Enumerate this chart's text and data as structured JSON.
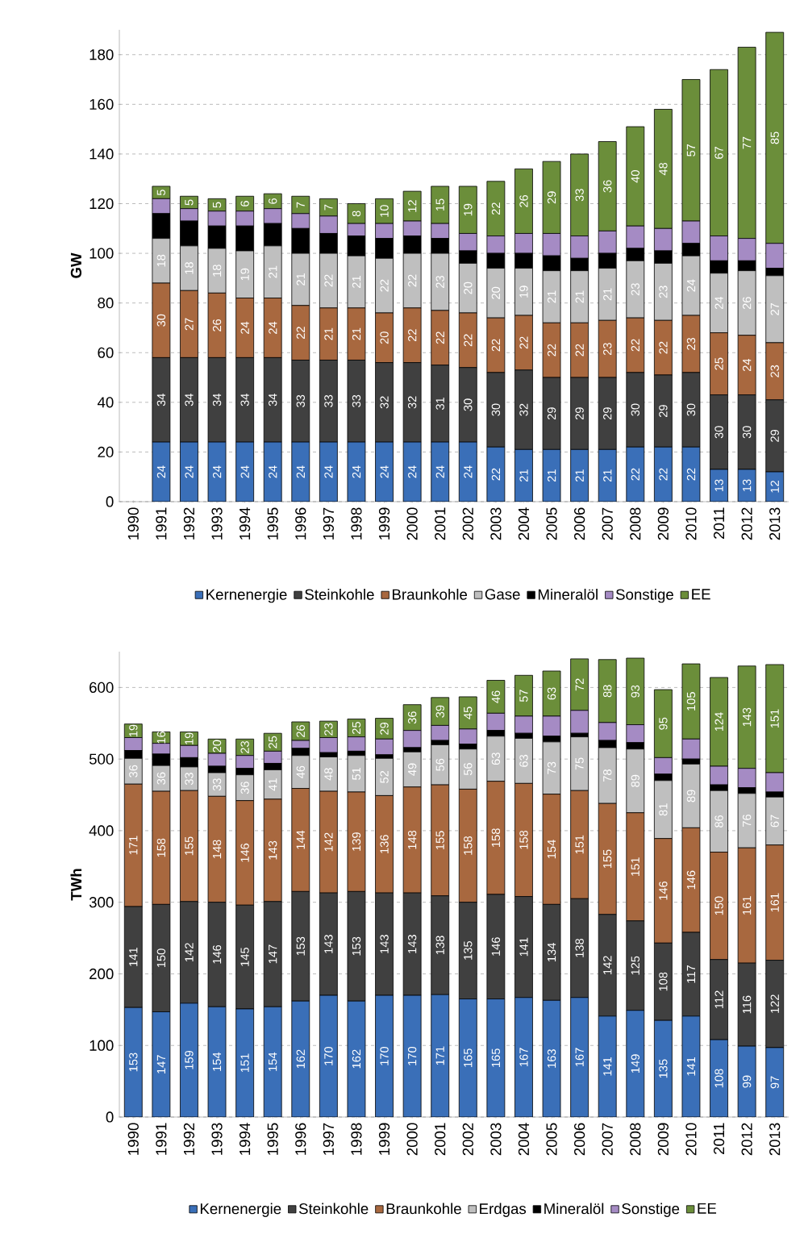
{
  "chart_data": [
    {
      "type": "bar",
      "stacked": true,
      "ylabel": "GW",
      "grid": "y",
      "legend": "bottom",
      "categories": [
        "1990",
        "1991",
        "1992",
        "1993",
        "1994",
        "1995",
        "1996",
        "1997",
        "1998",
        "1999",
        "2000",
        "2001",
        "2002",
        "2003",
        "2004",
        "2005",
        "2006",
        "2007",
        "2008",
        "2009",
        "2010",
        "2011",
        "2012",
        "2013"
      ],
      "ylim": [
        0,
        190
      ],
      "yticks": [
        0,
        20,
        40,
        60,
        80,
        100,
        120,
        140,
        160,
        180
      ],
      "series": [
        {
          "name": "Kernenergie",
          "color": "#3a6fb8",
          "values": [
            null,
            24,
            24,
            24,
            24,
            24,
            24,
            24,
            24,
            24,
            24,
            24,
            24,
            22,
            21,
            21,
            21,
            21,
            22,
            22,
            22,
            13,
            13,
            12
          ],
          "value_labels": [
            null,
            "24",
            "24",
            "24",
            "24",
            "24",
            "24",
            "24",
            "24",
            "24",
            "24",
            "24",
            "24",
            "22",
            "21",
            "21",
            "21",
            "21",
            "22",
            "22",
            "22",
            "13",
            "13",
            "12"
          ]
        },
        {
          "name": "Steinkohle",
          "color": "#404040",
          "values": [
            null,
            34,
            34,
            34,
            34,
            34,
            33,
            33,
            33,
            32,
            32,
            31,
            30,
            30,
            32,
            29,
            29,
            29,
            30,
            29,
            30,
            30,
            30,
            29
          ],
          "value_labels": [
            null,
            "34",
            "34",
            "34",
            "34",
            "34",
            "33",
            "33",
            "33",
            "32",
            "32",
            "31",
            "30",
            "30",
            "32",
            "29",
            "29",
            "29",
            "30",
            "29",
            "30",
            "30",
            "30",
            "29"
          ]
        },
        {
          "name": "Braunkohle",
          "color": "#a8683f",
          "values": [
            null,
            30,
            27,
            26,
            24,
            24,
            22,
            21,
            21,
            20,
            22,
            22,
            22,
            22,
            22,
            22,
            22,
            23,
            22,
            22,
            23,
            25,
            24,
            23
          ],
          "value_labels": [
            null,
            "30",
            "27",
            "26",
            "24",
            "24",
            "22",
            "21",
            "21",
            "20",
            "22",
            "22",
            "22",
            "22",
            "22",
            "22",
            "22",
            "23",
            "22",
            "22",
            "23",
            "25",
            "24",
            "23"
          ]
        },
        {
          "name": "Gase",
          "color": "#bfbfbf",
          "values": [
            null,
            18,
            18,
            18,
            19,
            21,
            21,
            22,
            21,
            22,
            22,
            23,
            20,
            20,
            19,
            21,
            21,
            21,
            23,
            23,
            24,
            24,
            26,
            27
          ],
          "value_labels": [
            null,
            "18",
            "18",
            "18",
            "19",
            "21",
            "21",
            "22",
            "21",
            "22",
            "22",
            "23",
            "20",
            "20",
            "19",
            "21",
            "21",
            "21",
            "23",
            "23",
            "24",
            "24",
            "26",
            "27"
          ]
        },
        {
          "name": "Mineralöl",
          "color": "#000000",
          "values": [
            null,
            10,
            10,
            9,
            10,
            9,
            10,
            8,
            8,
            8,
            7,
            6,
            5,
            6,
            6,
            6,
            5,
            6,
            5,
            5,
            5,
            5,
            4,
            3
          ]
        },
        {
          "name": "Sonstige",
          "color": "#a58bc4",
          "values": [
            null,
            6,
            5,
            6,
            6,
            6,
            6,
            7,
            5,
            6,
            6,
            6,
            7,
            7,
            8,
            9,
            9,
            9,
            9,
            9,
            9,
            10,
            9,
            10
          ]
        },
        {
          "name": "EE",
          "color": "#6b8e3a",
          "values": [
            null,
            5,
            5,
            5,
            6,
            6,
            7,
            7,
            8,
            10,
            12,
            15,
            19,
            22,
            26,
            29,
            33,
            36,
            40,
            48,
            57,
            67,
            77,
            85
          ],
          "value_labels": [
            null,
            "5",
            "5",
            "5",
            "6",
            "6",
            "7",
            "7",
            "8",
            "10",
            "12",
            "15",
            "19",
            "22",
            "26",
            "29",
            "33",
            "36",
            "40",
            "48",
            "57",
            "67",
            "77",
            "85"
          ]
        }
      ]
    },
    {
      "type": "bar",
      "stacked": true,
      "ylabel": "TWh",
      "grid": "y",
      "legend": "bottom",
      "categories": [
        "1990",
        "1991",
        "1992",
        "1993",
        "1994",
        "1995",
        "1996",
        "1997",
        "1998",
        "1999",
        "2000",
        "2001",
        "2002",
        "2003",
        "2004",
        "2005",
        "2006",
        "2007",
        "2008",
        "2009",
        "2010",
        "2011",
        "2012",
        "2013"
      ],
      "ylim": [
        0,
        650
      ],
      "yticks": [
        0,
        100,
        200,
        300,
        400,
        500,
        600
      ],
      "series": [
        {
          "name": "Kernenergie",
          "color": "#3a6fb8",
          "values": [
            153,
            147,
            159,
            154,
            151,
            154,
            162,
            170,
            162,
            170,
            170,
            171,
            165,
            165,
            167,
            163,
            167,
            141,
            149,
            135,
            141,
            108,
            99,
            97
          ],
          "value_labels": [
            "153",
            "147",
            "159",
            "154",
            "151",
            "154",
            "162",
            "170",
            "162",
            "170",
            "170",
            "171",
            "165",
            "165",
            "167",
            "163",
            "167",
            "141",
            "149",
            "135",
            "141",
            "108",
            "99",
            "97"
          ]
        },
        {
          "name": "Steinkohle",
          "color": "#404040",
          "values": [
            141,
            150,
            142,
            146,
            145,
            147,
            153,
            143,
            153,
            143,
            143,
            138,
            135,
            146,
            141,
            134,
            138,
            142,
            125,
            108,
            117,
            112,
            116,
            122
          ],
          "value_labels": [
            "141",
            "150",
            "142",
            "146",
            "145",
            "147",
            "153",
            "143",
            "153",
            "143",
            "143",
            "138",
            "135",
            "146",
            "141",
            "134",
            "138",
            "142",
            "125",
            "108",
            "117",
            "112",
            "116",
            "122"
          ]
        },
        {
          "name": "Braunkohle",
          "color": "#a8683f",
          "values": [
            171,
            158,
            155,
            148,
            146,
            143,
            144,
            142,
            139,
            136,
            148,
            155,
            158,
            158,
            158,
            154,
            151,
            155,
            151,
            146,
            146,
            150,
            161,
            161
          ],
          "value_labels": [
            "171",
            "158",
            "155",
            "148",
            "146",
            "143",
            "144",
            "142",
            "139",
            "136",
            "148",
            "155",
            "158",
            "158",
            "158",
            "154",
            "151",
            "155",
            "151",
            "146",
            "146",
            "150",
            "161",
            "161"
          ]
        },
        {
          "name": "Erdgas",
          "color": "#bfbfbf",
          "values": [
            36,
            36,
            33,
            33,
            36,
            41,
            46,
            48,
            51,
            52,
            49,
            56,
            56,
            63,
            63,
            73,
            75,
            78,
            89,
            81,
            89,
            86,
            76,
            67
          ],
          "value_labels": [
            "36",
            "36",
            "33",
            "33",
            "36",
            "41",
            "46",
            "48",
            "51",
            "52",
            "49",
            "56",
            "56",
            "63",
            "63",
            "73",
            "75",
            "78",
            "89",
            "81",
            "89",
            "86",
            "76",
            "67"
          ]
        },
        {
          "name": "Mineralöl",
          "color": "#000000",
          "values": [
            11,
            16,
            13,
            9,
            9,
            9,
            10,
            6,
            6,
            5,
            6,
            6,
            7,
            8,
            7,
            8,
            5,
            10,
            9,
            9,
            7,
            8,
            8,
            7
          ]
        },
        {
          "name": "Sonstige",
          "color": "#a58bc4",
          "values": [
            18,
            15,
            17,
            18,
            18,
            17,
            11,
            21,
            20,
            22,
            24,
            21,
            21,
            24,
            24,
            28,
            32,
            25,
            25,
            23,
            28,
            26,
            27,
            27
          ]
        },
        {
          "name": "EE",
          "color": "#6b8e3a",
          "values": [
            19,
            16,
            19,
            20,
            23,
            25,
            26,
            23,
            25,
            29,
            36,
            39,
            45,
            46,
            57,
            63,
            72,
            88,
            93,
            95,
            105,
            124,
            143,
            151
          ],
          "value_labels": [
            "19",
            "16",
            "19",
            "20",
            "23",
            "25",
            "26",
            "23",
            "25",
            "29",
            "36",
            "39",
            "45",
            "46",
            "57",
            "63",
            "72",
            "88",
            "93",
            "95",
            "105",
            "124",
            "143",
            "151"
          ]
        }
      ]
    }
  ]
}
